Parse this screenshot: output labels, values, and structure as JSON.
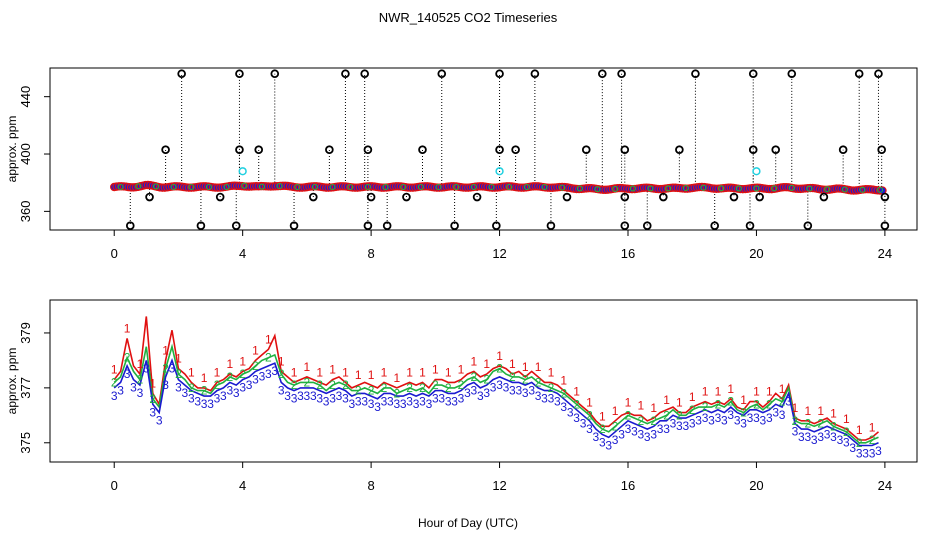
{
  "chart_data": [
    {
      "type": "scatter",
      "title": "NWR_140525  CO2 Timeseries",
      "xlabel": "",
      "ylabel": "approx. ppm",
      "xlim": [
        -2,
        25
      ],
      "ylim": [
        347,
        460
      ],
      "xticks": [
        0,
        4,
        8,
        12,
        16,
        20,
        24
      ],
      "yticks": [
        360,
        400,
        440
      ],
      "colors": {
        "baseline_edge": "#e01010",
        "baseline_fill": "#1a1ad0",
        "baseline_mid": "#20b040",
        "flagged": "#000000",
        "cyan": "#20d0e0"
      },
      "baseline": {
        "name": "continuous",
        "x": [
          0,
          0.5,
          1,
          1.5,
          2,
          2.5,
          3,
          3.5,
          4,
          4.5,
          5,
          5.5,
          6,
          6.5,
          7,
          7.5,
          8,
          8.5,
          9,
          9.5,
          10,
          10.5,
          11,
          11.5,
          12,
          12.5,
          13,
          13.5,
          14,
          14.5,
          15,
          15.5,
          16,
          16.5,
          17,
          17.5,
          18,
          18.5,
          19,
          19.5,
          20,
          20.5,
          21,
          21.5,
          22,
          22.5,
          23,
          23.5,
          23.9
        ],
        "y": [
          377,
          377,
          378,
          377,
          377,
          377,
          377,
          377,
          378,
          377,
          378,
          377,
          377,
          377,
          377,
          377,
          377,
          377,
          377,
          377,
          377,
          377,
          377,
          377,
          377,
          377,
          377,
          377,
          376.5,
          376,
          375.5,
          375.5,
          376,
          376,
          376,
          376,
          376.5,
          376.5,
          376,
          376,
          376,
          376,
          376.5,
          376,
          375.5,
          375.5,
          375,
          375,
          375
        ]
      },
      "flag_high_y": 456,
      "flag_low_y": 350,
      "flag_mid_y": 403,
      "flag_low2_y": 370,
      "flagged_high_x": [
        2.1,
        3.9,
        5.0,
        7.2,
        7.8,
        10.2,
        12.0,
        13.1,
        15.2,
        15.8,
        18.1,
        19.9,
        21.1,
        23.2,
        23.8
      ],
      "flagged_mid_x": [
        1.6,
        3.9,
        4.5,
        6.7,
        7.9,
        9.6,
        12.0,
        12.5,
        14.7,
        15.9,
        17.6,
        19.9,
        20.6,
        22.7,
        23.9
      ],
      "flagged_low_x": [
        0.5,
        2.7,
        3.8,
        5.6,
        7.9,
        8.5,
        10.6,
        11.9,
        13.6,
        15.9,
        16.6,
        18.7,
        19.8,
        21.6,
        24.0
      ],
      "flagged_low2_x": [
        1.1,
        3.3,
        6.2,
        8.0,
        9.1,
        11.3,
        14.1,
        15.9,
        17.1,
        19.3,
        20.1,
        22.1,
        24.0
      ],
      "cyan_points": [
        {
          "x": 4.0,
          "y": 388
        },
        {
          "x": 12.0,
          "y": 388
        },
        {
          "x": 20.0,
          "y": 388
        }
      ]
    },
    {
      "type": "line",
      "title": "",
      "xlabel": "Hour of Day (UTC)",
      "ylabel": "approx. ppm",
      "xlim": [
        -2,
        25
      ],
      "ylim": [
        374.3,
        380.2
      ],
      "xticks": [
        0,
        4,
        8,
        12,
        16,
        20,
        24
      ],
      "yticks": [
        375,
        377,
        379
      ],
      "series": [
        {
          "name": "1",
          "color": "#e01010"
        },
        {
          "name": "2",
          "color": "#20b040"
        },
        {
          "name": "3",
          "color": "#1a1ad0"
        }
      ],
      "x": [
        0.0,
        0.2,
        0.4,
        0.6,
        0.8,
        1.0,
        1.2,
        1.4,
        1.6,
        1.8,
        2.0,
        2.2,
        2.4,
        2.6,
        2.8,
        3.0,
        3.2,
        3.4,
        3.6,
        3.8,
        4.0,
        4.2,
        4.4,
        4.6,
        4.8,
        5.0,
        5.2,
        5.4,
        5.6,
        5.8,
        6.0,
        6.2,
        6.4,
        6.6,
        6.8,
        7.0,
        7.2,
        7.4,
        7.6,
        7.8,
        8.0,
        8.2,
        8.4,
        8.6,
        8.8,
        9.0,
        9.2,
        9.4,
        9.6,
        9.8,
        10.0,
        10.2,
        10.4,
        10.6,
        10.8,
        11.0,
        11.2,
        11.4,
        11.6,
        11.8,
        12.0,
        12.2,
        12.4,
        12.6,
        12.8,
        13.0,
        13.2,
        13.4,
        13.6,
        13.8,
        14.0,
        14.2,
        14.4,
        14.6,
        14.8,
        15.0,
        15.2,
        15.4,
        15.6,
        15.8,
        16.0,
        16.2,
        16.4,
        16.6,
        16.8,
        17.0,
        17.2,
        17.4,
        17.6,
        17.8,
        18.0,
        18.2,
        18.4,
        18.6,
        18.8,
        19.0,
        19.2,
        19.4,
        19.6,
        19.8,
        20.0,
        20.2,
        20.4,
        20.6,
        20.8,
        21.0,
        21.2,
        21.4,
        21.6,
        21.8,
        22.0,
        22.2,
        22.4,
        22.6,
        22.8,
        23.0,
        23.2,
        23.4,
        23.6,
        23.8
      ],
      "y1": [
        377.3,
        377.6,
        378.8,
        377.8,
        377.5,
        379.6,
        376.8,
        376.4,
        378.0,
        379.1,
        377.7,
        377.5,
        377.2,
        377.0,
        377.0,
        376.9,
        377.2,
        377.3,
        377.5,
        377.4,
        377.6,
        377.7,
        378.0,
        378.2,
        378.4,
        378.9,
        377.6,
        377.4,
        377.2,
        377.3,
        377.4,
        377.3,
        377.2,
        377.1,
        377.3,
        377.4,
        377.2,
        377.0,
        377.1,
        377.2,
        377.1,
        377.0,
        377.2,
        377.1,
        377.0,
        377.1,
        377.2,
        377.1,
        377.2,
        377.0,
        377.3,
        377.3,
        377.2,
        377.2,
        377.3,
        377.5,
        377.6,
        377.4,
        377.5,
        377.7,
        377.8,
        377.7,
        377.5,
        377.6,
        377.4,
        377.6,
        377.4,
        377.2,
        377.2,
        377.1,
        376.9,
        376.7,
        376.5,
        376.3,
        376.1,
        375.8,
        375.6,
        375.6,
        375.8,
        376.0,
        376.1,
        376.0,
        376.0,
        375.8,
        375.9,
        376.1,
        376.2,
        376.3,
        376.1,
        376.1,
        376.3,
        376.4,
        376.5,
        376.4,
        376.5,
        376.4,
        376.6,
        376.3,
        376.2,
        376.5,
        376.5,
        376.3,
        376.5,
        376.8,
        376.6,
        377.1,
        375.9,
        375.8,
        375.8,
        375.7,
        375.8,
        375.9,
        375.7,
        375.6,
        375.5,
        375.3,
        375.1,
        375.1,
        375.2,
        375.4
      ],
      "y2": [
        377.2,
        377.4,
        378.1,
        377.6,
        377.3,
        378.5,
        376.6,
        376.3,
        377.7,
        378.5,
        377.5,
        377.3,
        377.0,
        376.9,
        376.9,
        376.8,
        377.1,
        377.2,
        377.4,
        377.3,
        377.5,
        377.6,
        377.8,
        378.0,
        378.1,
        378.2,
        377.5,
        377.2,
        377.1,
        377.2,
        377.2,
        377.2,
        377.1,
        376.9,
        377.1,
        377.2,
        377.1,
        376.9,
        376.9,
        377.0,
        376.9,
        376.8,
        377.0,
        377.0,
        376.8,
        376.9,
        377.0,
        376.9,
        377.0,
        376.8,
        377.1,
        377.1,
        377.0,
        377.0,
        377.1,
        377.3,
        377.4,
        377.2,
        377.3,
        377.6,
        377.7,
        377.5,
        377.4,
        377.4,
        377.3,
        377.4,
        377.2,
        377.1,
        377.0,
        376.9,
        376.8,
        376.6,
        376.4,
        376.2,
        376.0,
        375.7,
        375.5,
        375.4,
        375.6,
        375.8,
        376.0,
        375.9,
        375.8,
        375.7,
        375.8,
        375.9,
        376.0,
        376.2,
        376.0,
        376.0,
        376.2,
        376.3,
        376.3,
        376.3,
        376.4,
        376.3,
        376.5,
        376.2,
        376.1,
        376.3,
        376.4,
        376.2,
        376.4,
        376.6,
        376.5,
        377.0,
        375.8,
        375.7,
        375.7,
        375.6,
        375.7,
        375.8,
        375.6,
        375.5,
        375.4,
        375.2,
        375.0,
        375.0,
        375.1,
        375.2
      ],
      "y3": [
        377.0,
        377.2,
        377.8,
        377.3,
        377.1,
        378.0,
        376.4,
        376.1,
        377.4,
        378.0,
        377.3,
        377.1,
        376.9,
        376.8,
        376.7,
        376.7,
        376.9,
        377.0,
        377.2,
        377.1,
        377.3,
        377.4,
        377.6,
        377.7,
        377.8,
        377.9,
        377.2,
        377.0,
        376.9,
        377.0,
        377.0,
        377.0,
        376.9,
        376.8,
        376.9,
        377.0,
        376.9,
        376.7,
        376.8,
        376.8,
        376.7,
        376.6,
        376.8,
        376.8,
        376.7,
        376.7,
        376.8,
        376.7,
        376.8,
        376.7,
        376.9,
        376.9,
        376.8,
        376.8,
        376.9,
        377.1,
        377.2,
        377.0,
        377.1,
        377.3,
        377.4,
        377.3,
        377.2,
        377.2,
        377.1,
        377.2,
        377.0,
        376.9,
        376.9,
        376.8,
        376.6,
        376.4,
        376.2,
        376.0,
        375.8,
        375.5,
        375.3,
        375.2,
        375.4,
        375.6,
        375.8,
        375.7,
        375.6,
        375.5,
        375.6,
        375.8,
        375.8,
        376.0,
        375.9,
        375.9,
        376.0,
        376.1,
        376.2,
        376.1,
        376.2,
        376.1,
        376.3,
        376.1,
        376.0,
        376.2,
        376.2,
        376.1,
        376.2,
        376.4,
        376.3,
        376.8,
        375.7,
        375.5,
        375.5,
        375.4,
        375.5,
        375.6,
        375.5,
        375.4,
        375.3,
        375.1,
        374.9,
        374.9,
        374.9,
        375.0
      ]
    }
  ]
}
